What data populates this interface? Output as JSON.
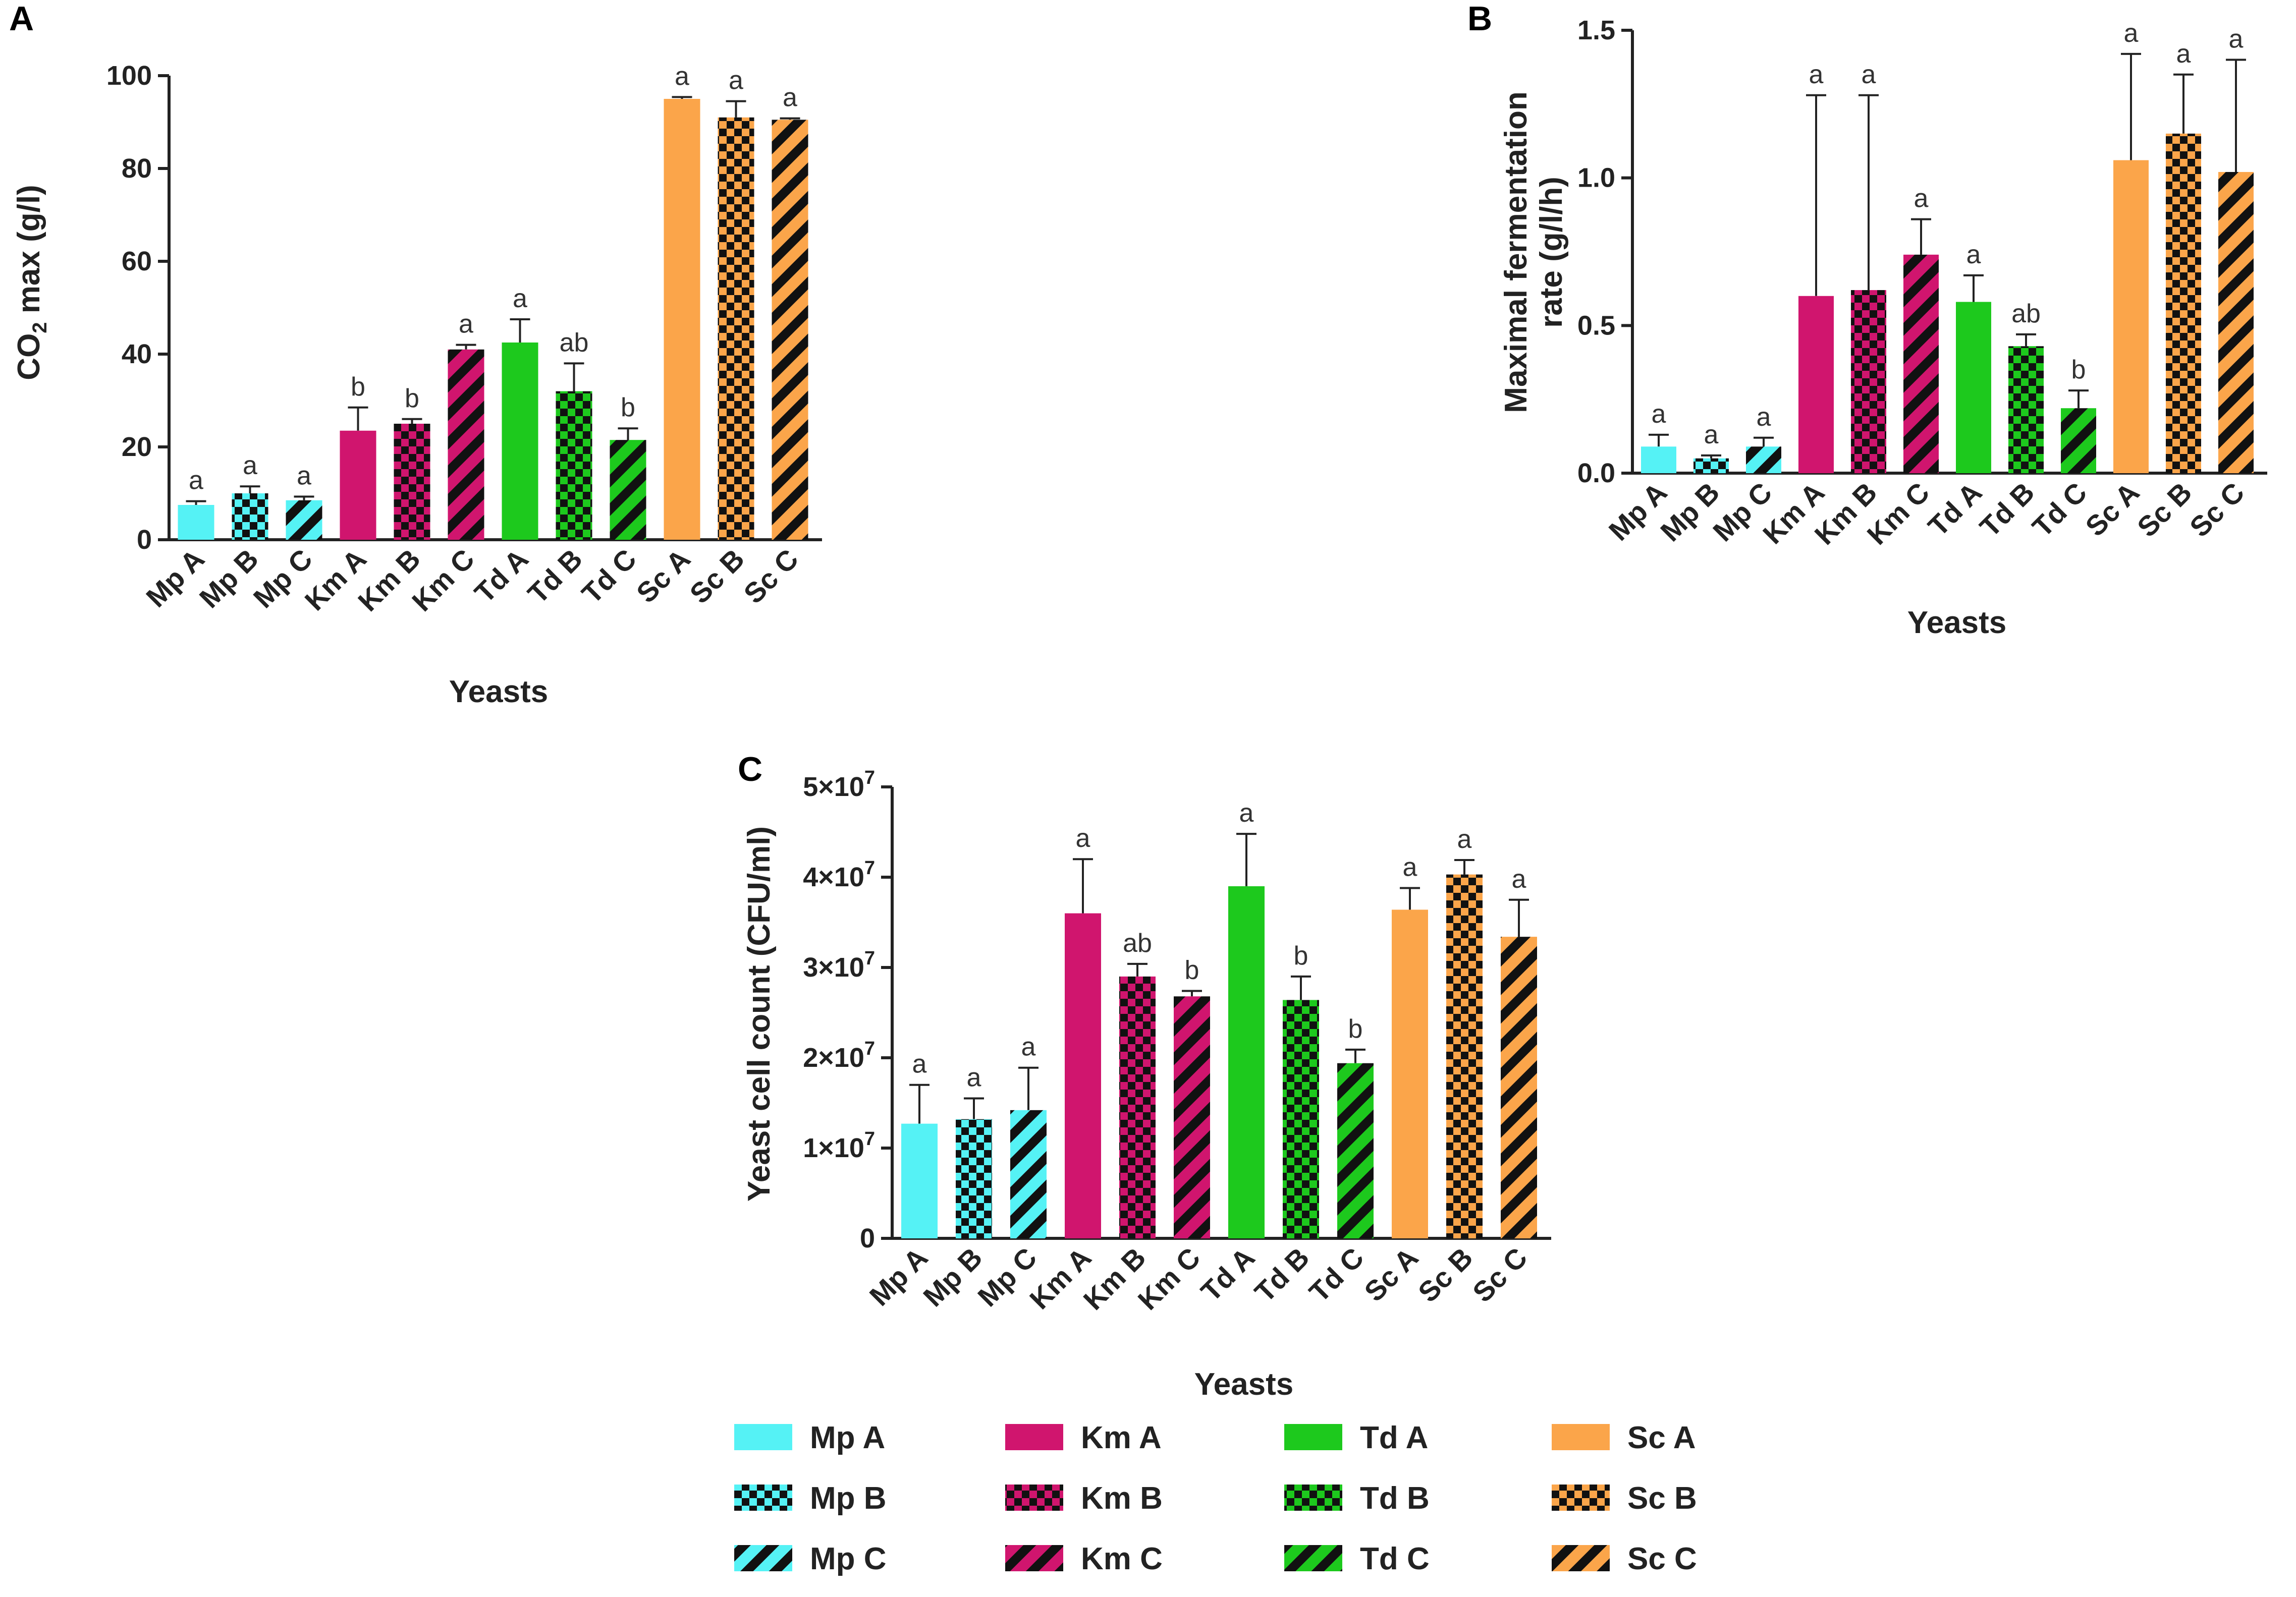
{
  "colors": {
    "Mp": "#55f2f5",
    "Km": "#d0156e",
    "Td": "#1dc91d",
    "Sc": "#fba54a",
    "axis": "#222222",
    "pattern_dark": "#111111"
  },
  "legend": {
    "items": [
      {
        "label": "Mp A",
        "color": "#55f2f5",
        "pattern": "solid"
      },
      {
        "label": "Mp B",
        "color": "#55f2f5",
        "pattern": "checker"
      },
      {
        "label": "Mp C",
        "color": "#55f2f5",
        "pattern": "stripe"
      },
      {
        "label": "Km A",
        "color": "#d0156e",
        "pattern": "solid"
      },
      {
        "label": "Km B",
        "color": "#d0156e",
        "pattern": "checker"
      },
      {
        "label": "Km C",
        "color": "#d0156e",
        "pattern": "stripe"
      },
      {
        "label": "Td A",
        "color": "#1dc91d",
        "pattern": "solid"
      },
      {
        "label": "Td B",
        "color": "#1dc91d",
        "pattern": "checker"
      },
      {
        "label": "Td C",
        "color": "#1dc91d",
        "pattern": "stripe"
      },
      {
        "label": "Sc A",
        "color": "#fba54a",
        "pattern": "solid"
      },
      {
        "label": "Sc B",
        "color": "#fba54a",
        "pattern": "checker"
      },
      {
        "label": "Sc C",
        "color": "#fba54a",
        "pattern": "stripe"
      }
    ]
  },
  "chart_data": [
    {
      "id": "A",
      "panel_label": "A",
      "type": "bar",
      "title": "",
      "xlabel": "Yeasts",
      "ylabel_main": "CO",
      "ylabel_sub": "2",
      "ylabel_rest": " max (g/l)",
      "ylim": [
        0,
        100
      ],
      "yticks": [
        0,
        20,
        40,
        60,
        80,
        100
      ],
      "ytick_labels": [
        "0",
        "20",
        "40",
        "60",
        "80",
        "100"
      ],
      "categories": [
        "Mp A",
        "Mp B",
        "Mp C",
        "Km A",
        "Km B",
        "Km C",
        "Td A",
        "Td B",
        "Td C",
        "Sc A",
        "Sc B",
        "Sc C"
      ],
      "values": [
        7.5,
        10,
        8.5,
        23.5,
        25,
        41,
        42.5,
        32,
        21.5,
        95,
        91,
        90.5
      ],
      "errors": [
        0.8,
        1.5,
        0.8,
        5,
        1,
        1,
        5,
        6,
        2.5,
        0.4,
        3.5,
        0.3
      ],
      "significance": [
        "a",
        "a",
        "a",
        "b",
        "b",
        "a",
        "a",
        "ab",
        "b",
        "a",
        "a",
        "a"
      ]
    },
    {
      "id": "B",
      "panel_label": "B",
      "type": "bar",
      "title": "",
      "xlabel": "Yeasts",
      "ylabel_line1": "Maximal fermentation",
      "ylabel_line2": "rate (g/l/h)",
      "ylim": [
        0,
        1.5
      ],
      "yticks": [
        0,
        0.5,
        1.0,
        1.5
      ],
      "ytick_labels": [
        "0.0",
        "0.5",
        "1.0",
        "1.5"
      ],
      "categories": [
        "Mp A",
        "Mp B",
        "Mp C",
        "Km A",
        "Km B",
        "Km C",
        "Td A",
        "Td B",
        "Td C",
        "Sc A",
        "Sc B",
        "Sc C"
      ],
      "values": [
        0.09,
        0.05,
        0.09,
        0.6,
        0.62,
        0.74,
        0.58,
        0.43,
        0.22,
        1.06,
        1.15,
        1.02
      ],
      "errors": [
        0.04,
        0.01,
        0.03,
        0.68,
        0.66,
        0.12,
        0.09,
        0.04,
        0.06,
        0.36,
        0.2,
        0.38
      ],
      "significance": [
        "a",
        "a",
        "a",
        "a",
        "a",
        "a",
        "a",
        "ab",
        "b",
        "a",
        "a",
        "a"
      ]
    },
    {
      "id": "C",
      "panel_label": "C",
      "type": "bar",
      "title": "",
      "xlabel": "Yeasts",
      "ylabel": "Yeast cell count (CFU/ml)",
      "ylim": [
        0,
        50000000
      ],
      "yticks": [
        0,
        10000000,
        20000000,
        30000000,
        40000000,
        50000000
      ],
      "ytick_labels": [
        "0",
        "1×10",
        "2×10",
        "3×10",
        "4×10",
        "5×10"
      ],
      "ytick_exponent": "7",
      "categories": [
        "Mp A",
        "Mp B",
        "Mp C",
        "Km A",
        "Km B",
        "Km C",
        "Td A",
        "Td B",
        "Td C",
        "Sc A",
        "Sc B",
        "Sc C"
      ],
      "values": [
        12700000,
        13200000,
        14200000,
        36000000,
        29000000,
        26800000,
        39000000,
        26400000,
        19400000,
        36400000,
        40300000,
        33400000
      ],
      "errors": [
        4300000,
        2300000,
        4700000,
        6000000,
        1400000,
        600000,
        5800000,
        2600000,
        1500000,
        2400000,
        1600000,
        4100000
      ],
      "significance": [
        "a",
        "a",
        "a",
        "a",
        "ab",
        "b",
        "a",
        "b",
        "b",
        "a",
        "a",
        "a"
      ]
    }
  ]
}
